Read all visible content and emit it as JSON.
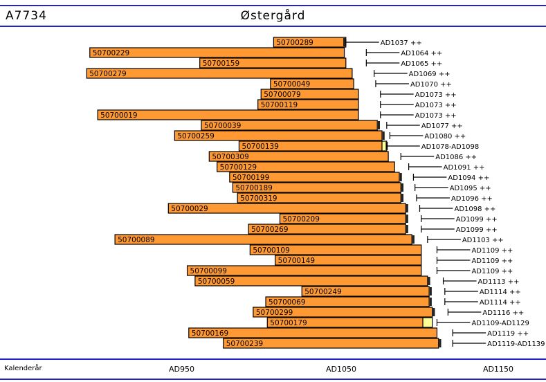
{
  "header": {
    "sample_id": "A7734",
    "site": "Østergård"
  },
  "colors": {
    "bar_fill": "#ff9933",
    "bar_border": "#000000",
    "sapwood_fill": "#ffff99",
    "rule_blue": "#2222cc"
  },
  "chart_data": {
    "type": "bar",
    "orientation": "horizontal",
    "title": "Østergård",
    "xlabel": "Kalenderår",
    "xlim": [
      888,
      1186
    ],
    "x_ticks": [
      {
        "value": 950,
        "label": "AD950"
      },
      {
        "value": 1050,
        "label": "AD1050"
      },
      {
        "value": 1150,
        "label": "AD1150"
      }
    ],
    "series": [
      {
        "id": "50700289",
        "start": 1007,
        "end": 1053,
        "sapwood_end": null,
        "marker": 1052,
        "felling": 1053,
        "dating": "AD1037 ++"
      },
      {
        "id": "50700229",
        "start": 890,
        "end": 1052,
        "sapwood_end": null,
        "marker": null,
        "felling": 1066,
        "dating": "AD1064 ++"
      },
      {
        "id": "50700159",
        "start": 960,
        "end": 1053,
        "sapwood_end": null,
        "marker": null,
        "felling": 1066,
        "dating": "AD1065 ++"
      },
      {
        "id": "50700279",
        "start": 888,
        "end": 1057,
        "sapwood_end": null,
        "marker": null,
        "felling": 1071,
        "dating": "AD1069 ++"
      },
      {
        "id": "50700049",
        "start": 1005,
        "end": 1058,
        "sapwood_end": null,
        "marker": null,
        "felling": 1072,
        "dating": "AD1070 ++"
      },
      {
        "id": "50700079",
        "start": 999,
        "end": 1061,
        "sapwood_end": null,
        "marker": null,
        "felling": 1075,
        "dating": "AD1073 ++"
      },
      {
        "id": "50700119",
        "start": 997,
        "end": 1061,
        "sapwood_end": null,
        "marker": null,
        "felling": 1075,
        "dating": "AD1073 ++"
      },
      {
        "id": "50700019",
        "start": 895,
        "end": 1061,
        "sapwood_end": null,
        "marker": null,
        "felling": 1075,
        "dating": "AD1073 ++"
      },
      {
        "id": "50700039",
        "start": 961,
        "end": 1073,
        "sapwood_end": null,
        "marker": 1074,
        "felling": 1079,
        "dating": "AD1077 ++"
      },
      {
        "id": "50700259",
        "start": 944,
        "end": 1076,
        "sapwood_end": null,
        "marker": 1077,
        "felling": 1081,
        "dating": "AD1080 ++"
      },
      {
        "id": "50700139",
        "start": 985,
        "end": 1076,
        "sapwood_end": 1079,
        "marker": 1079,
        "felling": 1079,
        "dating": "AD1078-AD1098"
      },
      {
        "id": "50700309",
        "start": 966,
        "end": 1080,
        "sapwood_end": null,
        "marker": null,
        "felling": 1088,
        "dating": "AD1086 ++"
      },
      {
        "id": "50700129",
        "start": 971,
        "end": 1084,
        "sapwood_end": null,
        "marker": null,
        "felling": 1093,
        "dating": "AD1091 ++"
      },
      {
        "id": "50700199",
        "start": 979,
        "end": 1087,
        "sapwood_end": null,
        "marker": 1088,
        "felling": 1096,
        "dating": "AD1094 ++"
      },
      {
        "id": "50700189",
        "start": 981,
        "end": 1088,
        "sapwood_end": null,
        "marker": 1089,
        "felling": 1097,
        "dating": "AD1095 ++"
      },
      {
        "id": "50700319",
        "start": 984,
        "end": 1088,
        "sapwood_end": null,
        "marker": 1089,
        "felling": 1098,
        "dating": "AD1096 ++"
      },
      {
        "id": "50700029",
        "start": 940,
        "end": 1091,
        "sapwood_end": null,
        "marker": 1092,
        "felling": 1100,
        "dating": "AD1098 ++"
      },
      {
        "id": "50700209",
        "start": 1011,
        "end": 1091,
        "sapwood_end": null,
        "marker": 1092,
        "felling": 1101,
        "dating": "AD1099 ++"
      },
      {
        "id": "50700269",
        "start": 991,
        "end": 1091,
        "sapwood_end": null,
        "marker": 1092,
        "felling": 1101,
        "dating": "AD1099 ++"
      },
      {
        "id": "50700089",
        "start": 906,
        "end": 1095,
        "sapwood_end": null,
        "marker": 1096,
        "felling": 1105,
        "dating": "AD1103 ++"
      },
      {
        "id": "50700109",
        "start": 992,
        "end": 1101,
        "sapwood_end": null,
        "marker": null,
        "felling": 1111,
        "dating": "AD1109 ++"
      },
      {
        "id": "50700149",
        "start": 1008,
        "end": 1101,
        "sapwood_end": null,
        "marker": null,
        "felling": 1111,
        "dating": "AD1109 ++"
      },
      {
        "id": "50700099",
        "start": 952,
        "end": 1101,
        "sapwood_end": null,
        "marker": null,
        "felling": 1111,
        "dating": "AD1109 ++"
      },
      {
        "id": "50700059",
        "start": 957,
        "end": 1105,
        "sapwood_end": null,
        "marker": 1106,
        "felling": 1115,
        "dating": "AD1113 ++"
      },
      {
        "id": "50700249",
        "start": 1025,
        "end": 1106,
        "sapwood_end": null,
        "marker": 1107,
        "felling": 1116,
        "dating": "AD1114 ++"
      },
      {
        "id": "50700069",
        "start": 1002,
        "end": 1106,
        "sapwood_end": null,
        "marker": 1107,
        "felling": 1116,
        "dating": "AD1114 ++"
      },
      {
        "id": "50700299",
        "start": 994,
        "end": 1108,
        "sapwood_end": null,
        "marker": 1109,
        "felling": 1118,
        "dating": "AD1116 ++"
      },
      {
        "id": "50700179",
        "start": 1003,
        "end": 1102,
        "sapwood_end": 1108,
        "marker": null,
        "felling": 1111,
        "dating": "AD1109-AD1129"
      },
      {
        "id": "50700169",
        "start": 953,
        "end": 1111,
        "sapwood_end": null,
        "marker": null,
        "felling": 1121,
        "dating": "AD1119 ++"
      },
      {
        "id": "50700239",
        "start": 975,
        "end": 1112,
        "sapwood_end": null,
        "marker": 1113,
        "felling": 1121,
        "dating": "AD1119-AD1139"
      }
    ]
  }
}
